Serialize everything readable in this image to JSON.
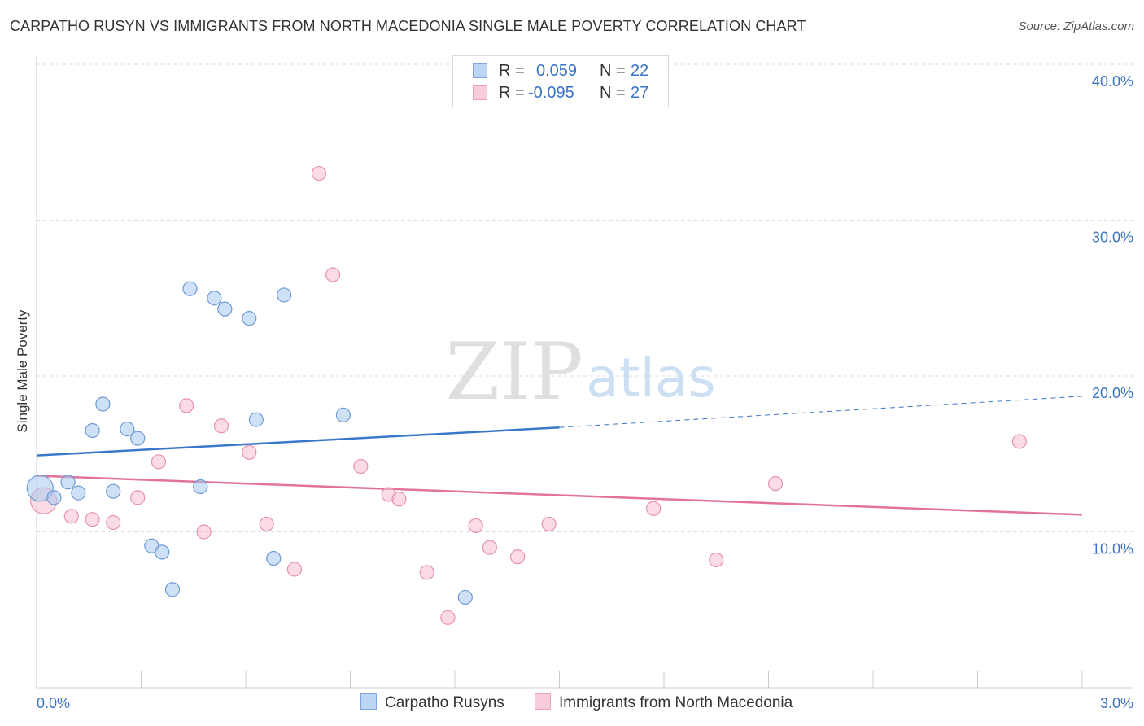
{
  "header": {
    "title": "CARPATHO RUSYN VS IMMIGRANTS FROM NORTH MACEDONIA SINGLE MALE POVERTY CORRELATION CHART",
    "source": "Source: ZipAtlas.com"
  },
  "watermark": {
    "zip": "ZIP",
    "atlas": "atlas"
  },
  "legend": {
    "series1": {
      "r_label": "R =",
      "r_value": "0.059",
      "n_label": "N =",
      "n_value": "22"
    },
    "series2": {
      "r_label": "R =",
      "r_value": "-0.095",
      "n_label": "N =",
      "n_value": "27"
    }
  },
  "colors": {
    "blue_fill": "#a8c8ef",
    "blue_stroke": "#6e9bd6",
    "blue_line": "#3a78c9",
    "pink_fill": "#f7bfd0",
    "pink_stroke": "#e892ac",
    "pink_line": "#e3729a",
    "tick_text": "#3b73c4",
    "grid": "#dcdcdc"
  },
  "chart_data": {
    "type": "scatter",
    "title": "CARPATHO RUSYN VS IMMIGRANTS FROM NORTH MACEDONIA SINGLE MALE POVERTY CORRELATION CHART",
    "xlabel": "",
    "ylabel": "Single Male Poverty",
    "xlim": [
      0.0,
      3.0
    ],
    "ylim": [
      0.0,
      40.0
    ],
    "x_tick_labels": [
      "0.0%",
      "3.0%"
    ],
    "y_ticks": [
      10,
      20,
      30,
      40
    ],
    "y_tick_labels": [
      "10.0%",
      "20.0%",
      "30.0%",
      "40.0%"
    ],
    "series": [
      {
        "name": "Carpatho Rusyns",
        "color": "blue",
        "points": [
          {
            "x": 0.01,
            "y": 12.8,
            "size": "large"
          },
          {
            "x": 0.05,
            "y": 12.2
          },
          {
            "x": 0.09,
            "y": 13.2
          },
          {
            "x": 0.12,
            "y": 12.5
          },
          {
            "x": 0.16,
            "y": 16.5
          },
          {
            "x": 0.19,
            "y": 18.2
          },
          {
            "x": 0.22,
            "y": 12.6
          },
          {
            "x": 0.26,
            "y": 16.6
          },
          {
            "x": 0.29,
            "y": 16.0
          },
          {
            "x": 0.33,
            "y": 9.1
          },
          {
            "x": 0.36,
            "y": 8.7
          },
          {
            "x": 0.39,
            "y": 6.3
          },
          {
            "x": 0.44,
            "y": 25.6
          },
          {
            "x": 0.47,
            "y": 12.9
          },
          {
            "x": 0.51,
            "y": 25.0
          },
          {
            "x": 0.54,
            "y": 24.3
          },
          {
            "x": 0.61,
            "y": 23.7
          },
          {
            "x": 0.63,
            "y": 17.2
          },
          {
            "x": 0.68,
            "y": 8.3
          },
          {
            "x": 0.71,
            "y": 25.2
          },
          {
            "x": 0.88,
            "y": 17.5
          },
          {
            "x": 1.23,
            "y": 5.8
          }
        ],
        "trend": {
          "x_start": 0.0,
          "y_start": 14.9,
          "x_solid_end": 1.5,
          "y_solid_end": 16.7,
          "x_end": 3.0,
          "y_end": 18.7
        }
      },
      {
        "name": "Immigrants from North Macedonia",
        "color": "pink",
        "points": [
          {
            "x": 0.02,
            "y": 12.0,
            "size": "large"
          },
          {
            "x": 0.1,
            "y": 11.0
          },
          {
            "x": 0.16,
            "y": 10.8
          },
          {
            "x": 0.22,
            "y": 10.6
          },
          {
            "x": 0.29,
            "y": 12.2
          },
          {
            "x": 0.35,
            "y": 14.5
          },
          {
            "x": 0.43,
            "y": 18.1
          },
          {
            "x": 0.48,
            "y": 10.0
          },
          {
            "x": 0.53,
            "y": 16.8
          },
          {
            "x": 0.61,
            "y": 15.1
          },
          {
            "x": 0.66,
            "y": 10.5
          },
          {
            "x": 0.74,
            "y": 7.6
          },
          {
            "x": 0.81,
            "y": 33.0
          },
          {
            "x": 0.85,
            "y": 26.5
          },
          {
            "x": 0.93,
            "y": 14.2
          },
          {
            "x": 1.01,
            "y": 12.4
          },
          {
            "x": 1.04,
            "y": 12.1
          },
          {
            "x": 1.12,
            "y": 7.4
          },
          {
            "x": 1.18,
            "y": 4.5
          },
          {
            "x": 1.26,
            "y": 10.4
          },
          {
            "x": 1.3,
            "y": 9.0
          },
          {
            "x": 1.38,
            "y": 8.4
          },
          {
            "x": 1.47,
            "y": 10.5
          },
          {
            "x": 1.77,
            "y": 11.5
          },
          {
            "x": 1.95,
            "y": 8.2
          },
          {
            "x": 2.12,
            "y": 13.1
          },
          {
            "x": 2.82,
            "y": 15.8
          }
        ],
        "trend": {
          "x_start": 0.0,
          "y_start": 13.6,
          "x_end": 3.0,
          "y_end": 11.1
        }
      }
    ],
    "legend_position": "bottom-center"
  }
}
